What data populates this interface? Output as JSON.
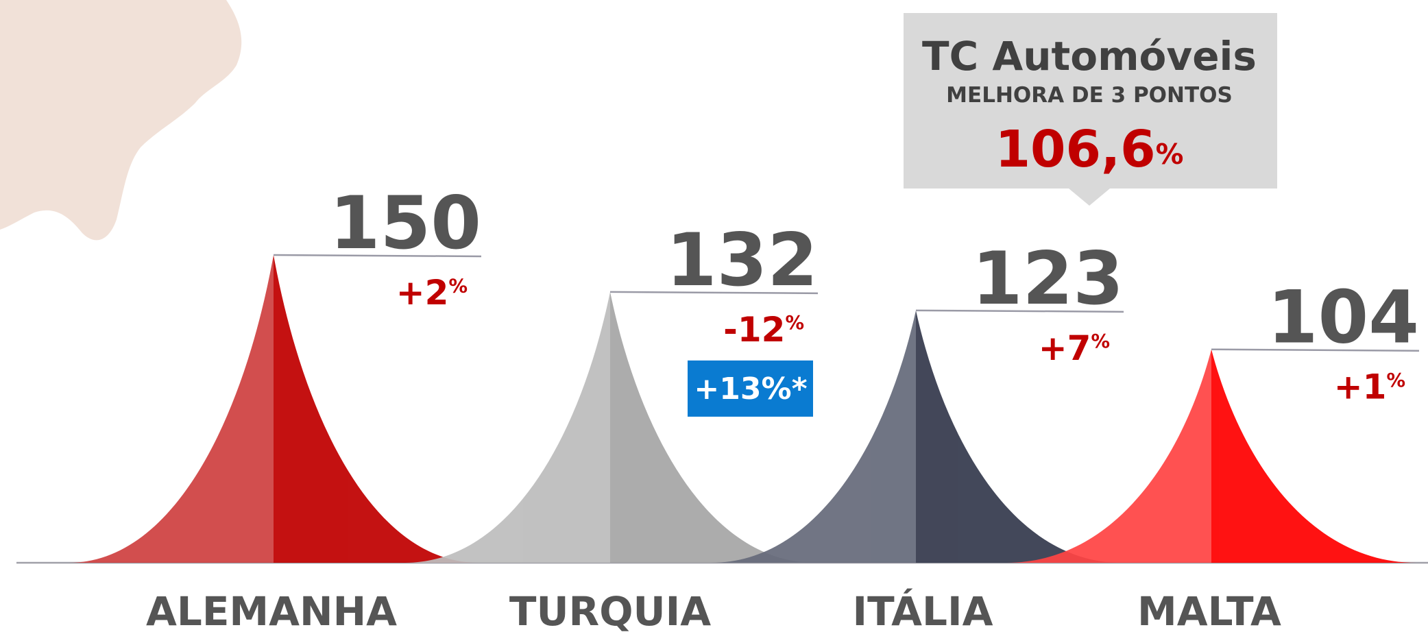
{
  "chart_data": {
    "type": "peak",
    "categories": [
      "ALEMANHA",
      "TURQUIA",
      "ITÁLIA",
      "MALTA"
    ],
    "values": [
      150,
      132,
      123,
      104
    ],
    "changes": [
      "+2%",
      "-12%",
      "+7%",
      "+1%"
    ],
    "badges": [
      null,
      "+13%*",
      null,
      null
    ],
    "colors": [
      [
        "#cf4141",
        "#c00000"
      ],
      [
        "#bdbdbd",
        "#a6a6a6"
      ],
      [
        "#666b7b",
        "#353a4d"
      ],
      [
        "#ff4444",
        "#ff0000"
      ]
    ],
    "callout": {
      "title": "TC Automóveis",
      "subtitle": "MELHORA DE 3 PONTOS",
      "value": "106,6%"
    }
  }
}
